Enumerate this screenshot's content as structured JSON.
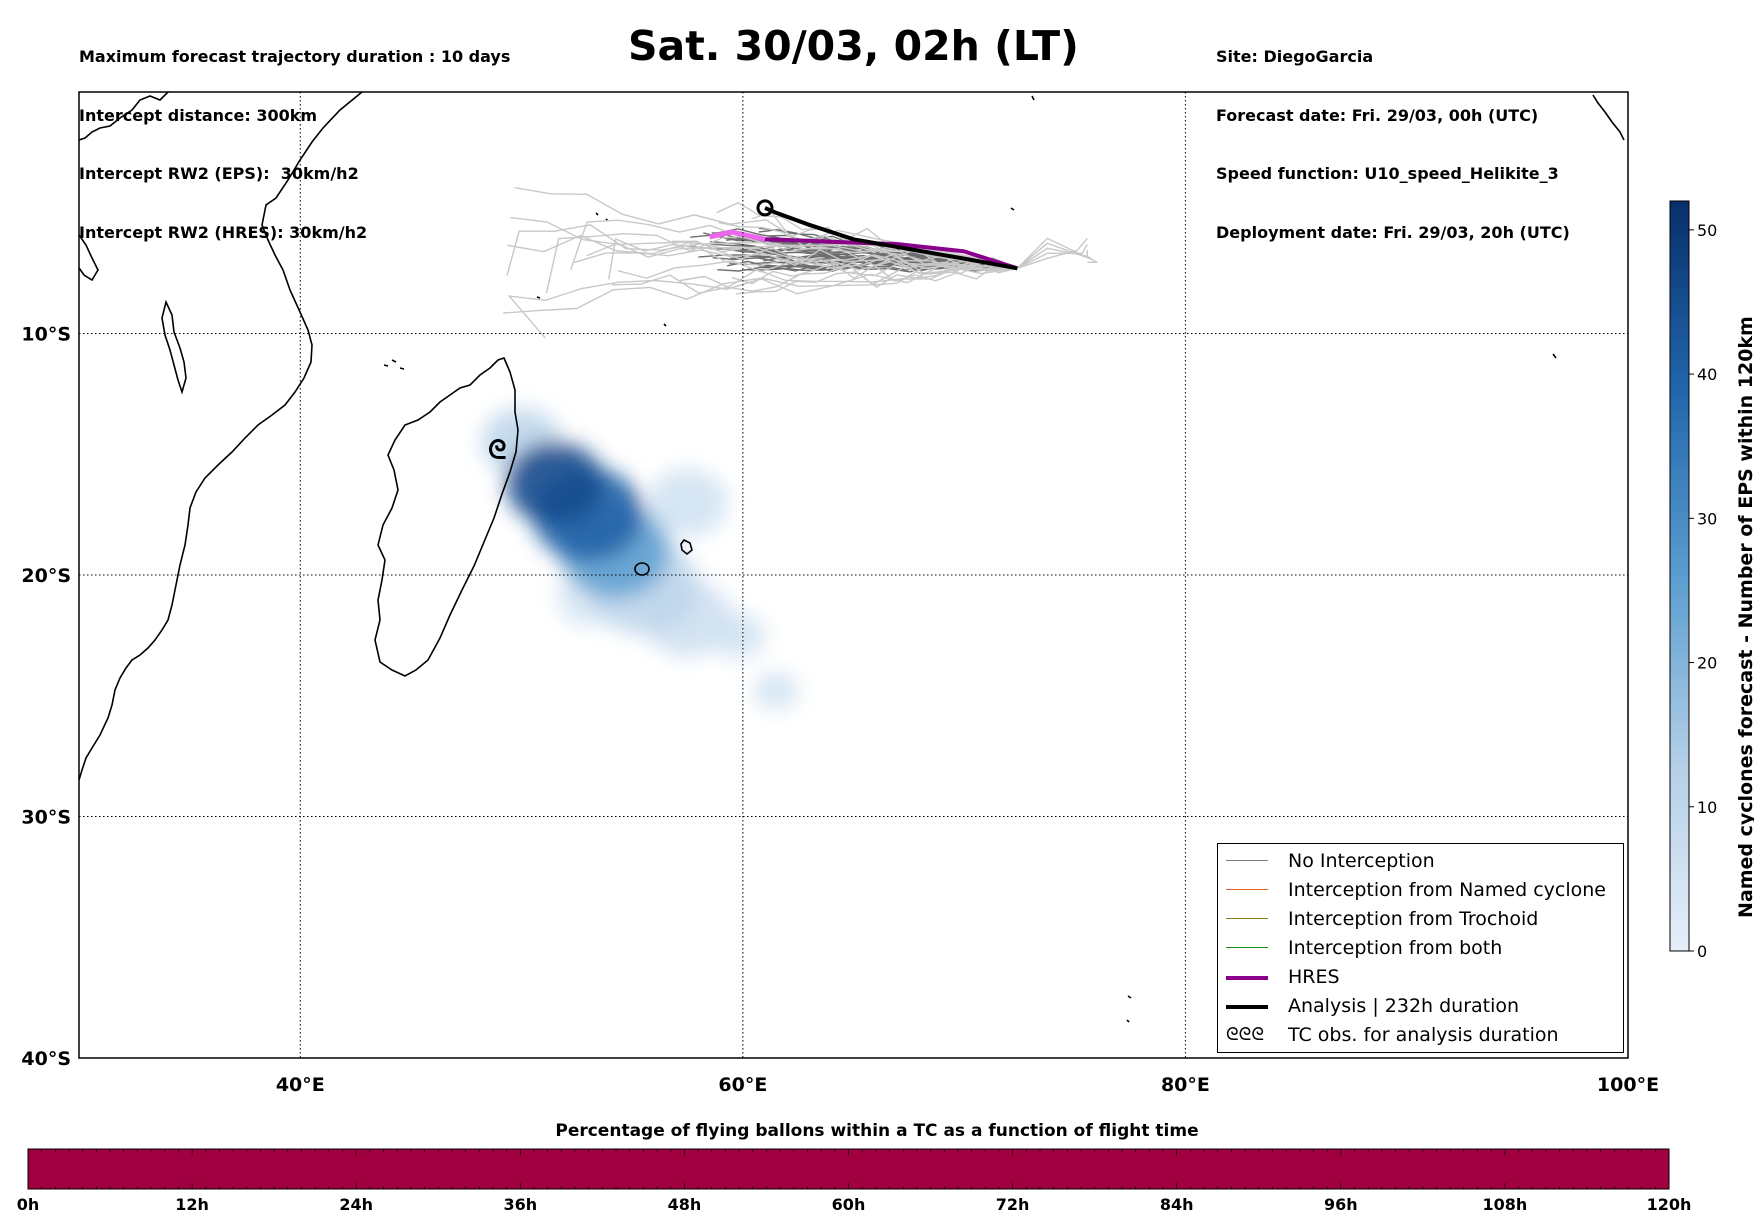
{
  "header": {
    "left_lines": [
      "Maximum forecast trajectory duration : 10 days",
      "Intercept distance: 300km",
      "Intercept RW2 (EPS):  30km/h2",
      "Intercept RW2 (HRES): 30km/h2"
    ],
    "title": "Sat. 30/03, 02h (LT)",
    "right_lines": [
      "Site: DiegoGarcia",
      "Forecast date: Fri. 29/03, 00h (UTC)",
      "Speed function: U10_speed_Helikite_3",
      "Deployment date: Fri. 29/03, 20h (UTC)"
    ]
  },
  "map": {
    "lon_range": [
      30,
      100
    ],
    "lat_range": [
      -40,
      0
    ],
    "lon_ticks": [
      {
        "value": 40,
        "label": "40°E"
      },
      {
        "value": 60,
        "label": "60°E"
      },
      {
        "value": 80,
        "label": "80°E"
      },
      {
        "value": 100,
        "label": "100°E"
      }
    ],
    "lat_ticks": [
      {
        "value": -10,
        "label": "10°S"
      },
      {
        "value": -20,
        "label": "20°S"
      },
      {
        "value": -30,
        "label": "30°S"
      },
      {
        "value": -40,
        "label": "40°S"
      }
    ],
    "grid": "dotted",
    "deployment_site": {
      "lon": 72.4,
      "lat": -7.3
    },
    "analysis_track": [
      [
        72.4,
        -7.3
      ],
      [
        70,
        -6.9
      ],
      [
        67.5,
        -6.5
      ],
      [
        65,
        -6.1
      ],
      [
        63,
        -5.5
      ],
      [
        61.5,
        -5.0
      ],
      [
        61.0,
        -4.8
      ]
    ],
    "hres_track": [
      [
        72.4,
        -7.3
      ],
      [
        70,
        -6.6
      ],
      [
        67,
        -6.3
      ],
      [
        64,
        -6.2
      ],
      [
        61,
        -6.1
      ],
      [
        59.5,
        -5.8
      ],
      [
        58.5,
        -6.0
      ]
    ],
    "cyclone_symbol": {
      "lon": 48.9,
      "lat": -14.8
    },
    "density_blobs": [
      {
        "lon": 51.5,
        "lat": -16.2,
        "r": 2.2,
        "level": 45
      },
      {
        "lon": 53.0,
        "lat": -17.5,
        "r": 2.5,
        "level": 40
      },
      {
        "lon": 54.2,
        "lat": -19.0,
        "r": 2.5,
        "level": 25
      },
      {
        "lon": 50.0,
        "lat": -14.5,
        "r": 1.8,
        "level": 10
      },
      {
        "lon": 55.5,
        "lat": -20.5,
        "r": 2.5,
        "level": 10
      },
      {
        "lon": 57.5,
        "lat": -17.0,
        "r": 1.8,
        "level": 5
      },
      {
        "lon": 57.5,
        "lat": -21.8,
        "r": 2.0,
        "level": 6
      },
      {
        "lon": 59.8,
        "lat": -22.5,
        "r": 1.2,
        "level": 5
      },
      {
        "lon": 61.5,
        "lat": -24.8,
        "r": 1.0,
        "level": 5
      },
      {
        "lon": 53.0,
        "lat": -21.0,
        "r": 1.4,
        "level": 4
      }
    ]
  },
  "legend": {
    "items": [
      {
        "label": "No Interception",
        "color": "#7f7f7f"
      },
      {
        "label": "Interception from Named cyclone",
        "color": "#e8632a"
      },
      {
        "label": "Interception from Trochoid",
        "color": "#8a7d14"
      },
      {
        "label": "Interception from both",
        "color": "#1a8a1a"
      },
      {
        "label": "HRES",
        "color": "#8b008b"
      },
      {
        "label": "Analysis | 232h duration",
        "color": "#000000"
      },
      {
        "label": "TC obs. for analysis duration",
        "symbol": "ᘓᘓᘓ"
      }
    ]
  },
  "colorbar_right": {
    "label": "Named cyclones forecast - Number of EPS within 120km",
    "min": 0,
    "max": 52,
    "ticks": [
      0,
      10,
      20,
      30,
      40,
      50
    ],
    "colors": [
      "#e6eff9",
      "#08306b"
    ]
  },
  "colorbar_bottom": {
    "title": "Percentage of flying ballons within a TC as a function of flight time",
    "ticks": [
      "0h",
      "12h",
      "24h",
      "36h",
      "48h",
      "60h",
      "72h",
      "84h",
      "96h",
      "108h",
      "120h"
    ],
    "fill_color": "#a00040"
  }
}
